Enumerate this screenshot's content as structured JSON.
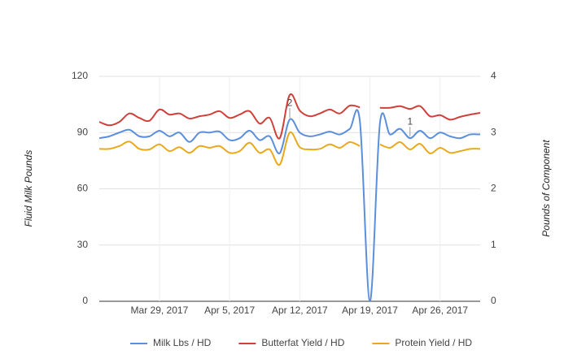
{
  "chart_data": {
    "type": "line",
    "y_label": "Fluid Milk Pounds",
    "y2_label": "Pounds of Component",
    "x": [
      "2017-03-23",
      "2017-03-24",
      "2017-03-25",
      "2017-03-26",
      "2017-03-27",
      "2017-03-28",
      "2017-03-29",
      "2017-03-30",
      "2017-03-31",
      "2017-04-01",
      "2017-04-02",
      "2017-04-03",
      "2017-04-04",
      "2017-04-05",
      "2017-04-06",
      "2017-04-07",
      "2017-04-08",
      "2017-04-09",
      "2017-04-10",
      "2017-04-11",
      "2017-04-12",
      "2017-04-13",
      "2017-04-14",
      "2017-04-15",
      "2017-04-16",
      "2017-04-17",
      "2017-04-18",
      "2017-04-19",
      "2017-04-20",
      "2017-04-21",
      "2017-04-22",
      "2017-04-23",
      "2017-04-24",
      "2017-04-25",
      "2017-04-26",
      "2017-04-27",
      "2017-04-28",
      "2017-04-29",
      "2017-04-30"
    ],
    "series": [
      {
        "name": "Milk Lbs / HD",
        "color": "#5b8fdc",
        "values": [
          87,
          88,
          90,
          91.5,
          88,
          88,
          91,
          88,
          90,
          85,
          90,
          90,
          90.5,
          86,
          87,
          91,
          86,
          88,
          79,
          97,
          90,
          88,
          89,
          90.5,
          89,
          92,
          96,
          0,
          95,
          89,
          92,
          87,
          91,
          87,
          90,
          88,
          87,
          89,
          89
        ]
      },
      {
        "name": "Butterfat Yield / HD",
        "color": "#d0403a",
        "axis": "y2",
        "values": [
          3.19,
          3.13,
          3.19,
          3.34,
          3.26,
          3.21,
          3.41,
          3.32,
          3.34,
          3.25,
          3.29,
          3.32,
          3.38,
          3.26,
          3.32,
          3.38,
          3.16,
          3.26,
          2.9,
          3.67,
          3.39,
          3.29,
          3.34,
          3.41,
          3.34,
          3.48,
          3.45,
          null,
          3.44,
          3.44,
          3.47,
          3.42,
          3.47,
          3.29,
          3.31,
          3.23,
          3.28,
          3.32,
          3.35
        ]
      },
      {
        "name": "Protein Yield / HD",
        "color": "#eaa81a",
        "axis": "y2",
        "values": [
          2.71,
          2.71,
          2.76,
          2.84,
          2.71,
          2.7,
          2.79,
          2.67,
          2.74,
          2.64,
          2.76,
          2.73,
          2.76,
          2.64,
          2.67,
          2.82,
          2.64,
          2.7,
          2.43,
          3.0,
          2.74,
          2.7,
          2.71,
          2.79,
          2.73,
          2.83,
          2.76,
          null,
          2.79,
          2.73,
          2.83,
          2.7,
          2.8,
          2.63,
          2.73,
          2.64,
          2.67,
          2.71,
          2.71
        ]
      }
    ],
    "xlim": [
      "2017-03-23",
      "2017-04-30"
    ],
    "xticks": [
      {
        "value": "2017-03-29",
        "label": "Mar 29, 2017"
      },
      {
        "value": "2017-04-05",
        "label": "Apr 5, 2017"
      },
      {
        "value": "2017-04-12",
        "label": "Apr 12, 2017"
      },
      {
        "value": "2017-04-19",
        "label": "Apr 19, 2017"
      },
      {
        "value": "2017-04-26",
        "label": "Apr 26, 2017"
      }
    ],
    "ylim": [
      0,
      120
    ],
    "yticks": [
      0,
      30,
      60,
      90,
      120
    ],
    "y2lim": [
      0,
      4
    ],
    "y2ticks": [
      0,
      1,
      2,
      3,
      4
    ],
    "grid": true,
    "legend": "bottom",
    "annotations": [
      {
        "x": "2017-04-11",
        "text": "2"
      },
      {
        "x": "2017-04-23",
        "text": "1"
      }
    ]
  }
}
